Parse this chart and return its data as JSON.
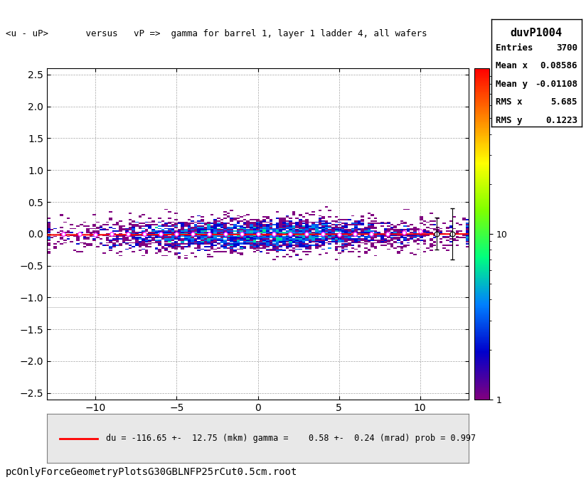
{
  "title": "<u - uP>       versus   vP =>  gamma for barrel 1, layer 1 ladder 4, all wafers",
  "stats_title": "duvP1004",
  "entries": 3700,
  "mean_x": 0.08586,
  "mean_y": -0.01108,
  "rms_x": 5.685,
  "rms_y": 0.1223,
  "xlim": [
    -13,
    13
  ],
  "ylim": [
    -2.6,
    2.6
  ],
  "ylabel_ticks": [
    -2.5,
    -2.0,
    -1.5,
    -1.0,
    -0.5,
    0.0,
    0.5,
    1.0,
    1.5,
    2.0,
    2.5
  ],
  "xlabel_ticks": [
    -10,
    -5,
    0,
    5,
    10
  ],
  "fit_text": "du = -116.65 +-  12.75 (mkm) gamma =    0.58 +-  0.24 (mrad) prob = 0.997",
  "colorbar_label_1": "1",
  "colorbar_label_10": "10",
  "filename": "pcOnlyForceGeometryPlotsG30GBLNFP25rCut0.5cm.root",
  "bg_color": "#ffffff",
  "plot_bg": "#ffffff",
  "legend_bg": "#e8e8e8",
  "grid_color": "#808080",
  "fit_line_color": "#ff0000",
  "profile_marker_color": "#ff00ff",
  "profile_outlier_color": "#000000",
  "colorbar_min": 1,
  "colorbar_max": 100,
  "seed": 42,
  "n_points": 3700,
  "x_mean": 0.08586,
  "x_rms": 5.685,
  "y_mean": -0.01108,
  "y_rms": 0.1223,
  "gamma": 0.00058,
  "du": -0.11665,
  "profile_x": [
    -12.0,
    -11.0,
    -10.0,
    -9.0,
    -8.0,
    -7.0,
    -6.0,
    -5.0,
    -4.0,
    -3.0,
    -2.0,
    -1.0,
    0.0,
    1.0,
    2.0,
    3.0,
    4.0,
    5.0,
    6.0,
    7.0,
    8.0,
    9.0,
    10.0,
    11.0,
    12.0
  ],
  "profile_y": [
    0.0,
    0.0,
    -0.01,
    -0.005,
    0.002,
    -0.003,
    0.001,
    0.0,
    -0.002,
    0.001,
    0.0,
    0.0,
    -0.001,
    0.002,
    -0.001,
    0.001,
    0.0,
    -0.01,
    0.003,
    -0.002,
    0.0,
    0.02,
    0.04,
    0.0,
    0.0
  ],
  "profile_err": [
    0.05,
    0.04,
    0.03,
    0.025,
    0.02,
    0.018,
    0.015,
    0.012,
    0.01,
    0.008,
    0.007,
    0.006,
    0.006,
    0.007,
    0.007,
    0.008,
    0.009,
    0.01,
    0.012,
    0.015,
    0.018,
    0.025,
    0.08,
    0.25,
    0.4
  ]
}
